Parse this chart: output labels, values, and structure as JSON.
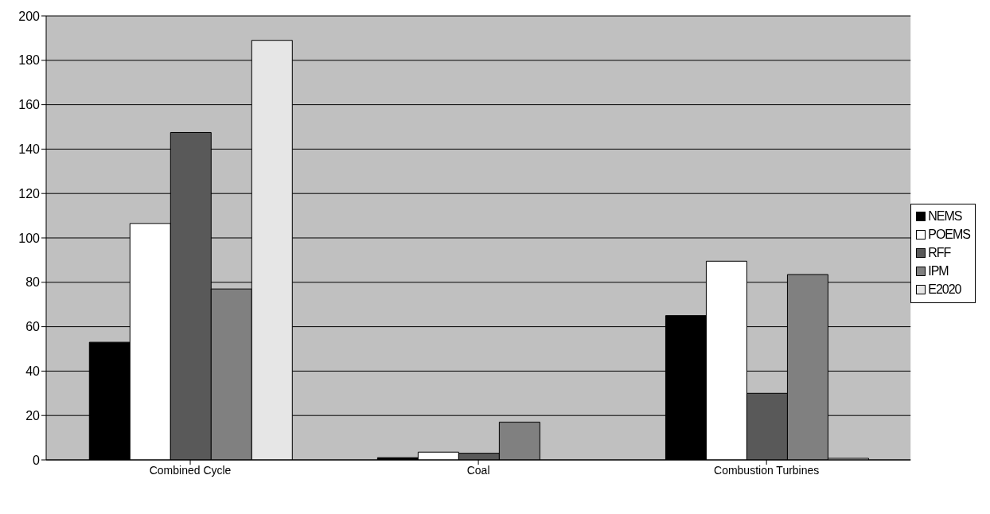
{
  "chart_data": {
    "type": "bar",
    "categories": [
      "Combined Cycle",
      "Coal",
      "Combustion Turbines"
    ],
    "series": [
      {
        "name": "NEMS",
        "color": "#000000",
        "values": [
          53,
          1,
          65
        ]
      },
      {
        "name": "POEMS",
        "color": "#ffffff",
        "values": [
          106.5,
          3.5,
          89.5
        ]
      },
      {
        "name": "RFF",
        "color": "#595959",
        "values": [
          147.5,
          3,
          30
        ]
      },
      {
        "name": "IPM",
        "color": "#808080",
        "values": [
          77,
          17,
          83.5
        ]
      },
      {
        "name": "E2020",
        "color": "#e6e6e6",
        "values": [
          189,
          0,
          0.7
        ]
      }
    ],
    "ylim": [
      0,
      200
    ],
    "yticks": [
      0,
      20,
      40,
      60,
      80,
      100,
      120,
      140,
      160,
      180,
      200
    ],
    "grid": "y",
    "legend": "right"
  }
}
